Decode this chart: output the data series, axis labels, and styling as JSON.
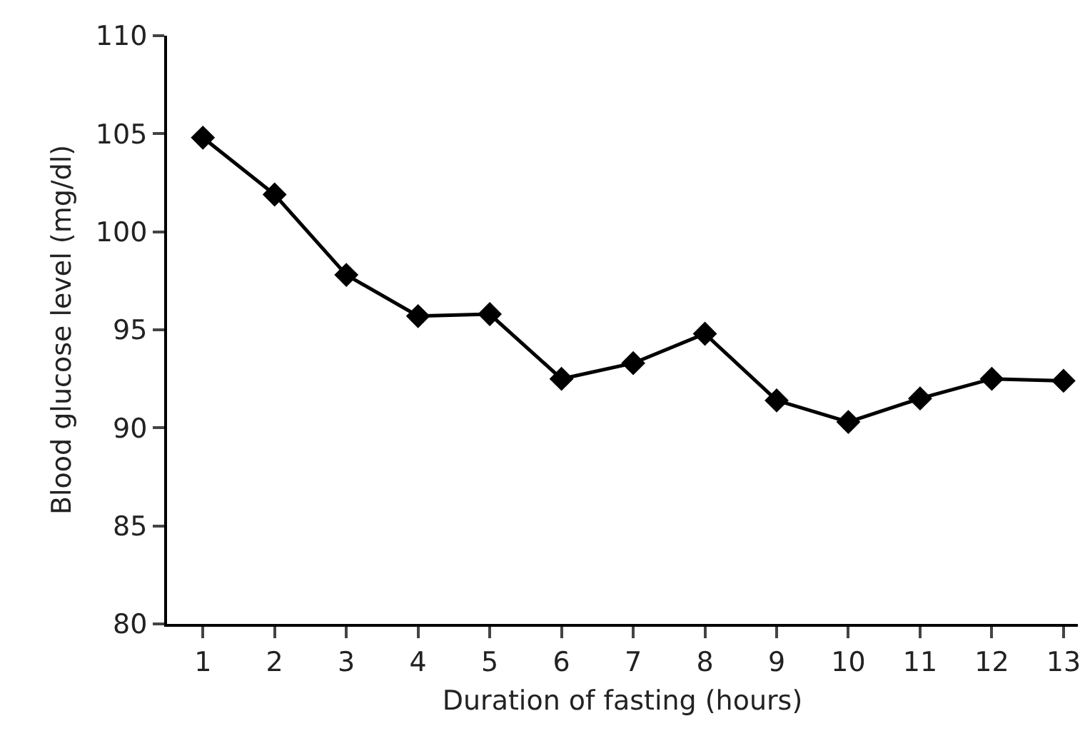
{
  "chart_data": {
    "type": "line",
    "xlabel": "Duration of fasting (hours)",
    "ylabel": "Blood glucose level (mg/dl)",
    "x": [
      1,
      2,
      3,
      4,
      5,
      6,
      7,
      8,
      9,
      10,
      11,
      12,
      13
    ],
    "series": [
      {
        "color": "#000000",
        "values": [
          104.8,
          101.9,
          97.8,
          95.7,
          95.8,
          92.5,
          93.3,
          94.8,
          91.4,
          90.3,
          91.5,
          92.5,
          92.4
        ]
      }
    ],
    "xlim": [
      0.5,
      13.2
    ],
    "xticks": [
      1,
      2,
      3,
      4,
      5,
      6,
      7,
      8,
      9,
      10,
      11,
      12,
      13
    ],
    "ylim": [
      80,
      110
    ],
    "yticks": [
      80,
      85,
      90,
      95,
      100,
      105,
      110
    ],
    "grid": false,
    "marker": "diamond",
    "line_style": "solid"
  }
}
